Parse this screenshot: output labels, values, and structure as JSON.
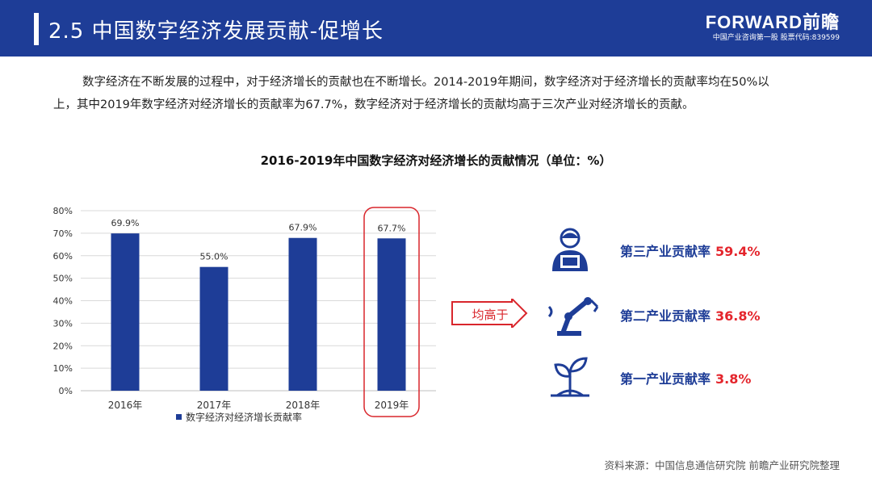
{
  "header": {
    "title": "2.5 中国数字经济发展贡献-促增长",
    "brand_logo": "FORWARD前瞻",
    "brand_sub": "中国产业咨询第一股 股票代码:839599"
  },
  "intro": {
    "line1": "数字经济在不断发展的过程中，对于经济增长的贡献也在不断增长。2014-2019年期间，数字经济对于经济增长的贡献率均在50%以",
    "line2": "上，其中2019年数字经济对经济增长的贡献率为67.7%，数字经济对于经济增长的贡献均高于三次产业对经济增长的贡献。"
  },
  "chart_data": {
    "type": "bar",
    "title": "2016-2019年中国数字经济对经济增长的贡献情况（单位：%）",
    "categories": [
      "2016年",
      "2017年",
      "2018年",
      "2019年"
    ],
    "series": [
      {
        "name": "数字经济对经济增长贡献率",
        "values": [
          69.9,
          55.0,
          67.9,
          67.7
        ],
        "labels": [
          "69.9%",
          "55.0%",
          "67.9%",
          "67.7%"
        ]
      }
    ],
    "ylim": [
      0,
      80
    ],
    "yticks": [
      "0%",
      "10%",
      "20%",
      "30%",
      "40%",
      "50%",
      "60%",
      "70%",
      "80%"
    ],
    "legend_position": "bottom",
    "grid": true,
    "highlight_category": "2019年",
    "colors": {
      "bar": "#1e3d97",
      "highlight": "#d9262c",
      "grid": "#d9d9d9"
    }
  },
  "comparison": {
    "arrow_label": "均高于",
    "items": [
      {
        "icon": "worker-icon",
        "label": "第三产业贡献率",
        "value": "59.4%"
      },
      {
        "icon": "robot-arm-icon",
        "label": "第二产业贡献率",
        "value": "36.8%"
      },
      {
        "icon": "sprout-icon",
        "label": "第一产业贡献率",
        "value": "3.8%"
      }
    ]
  },
  "source": "资料来源：中国信息通信研究院 前瞻产业研究院整理"
}
